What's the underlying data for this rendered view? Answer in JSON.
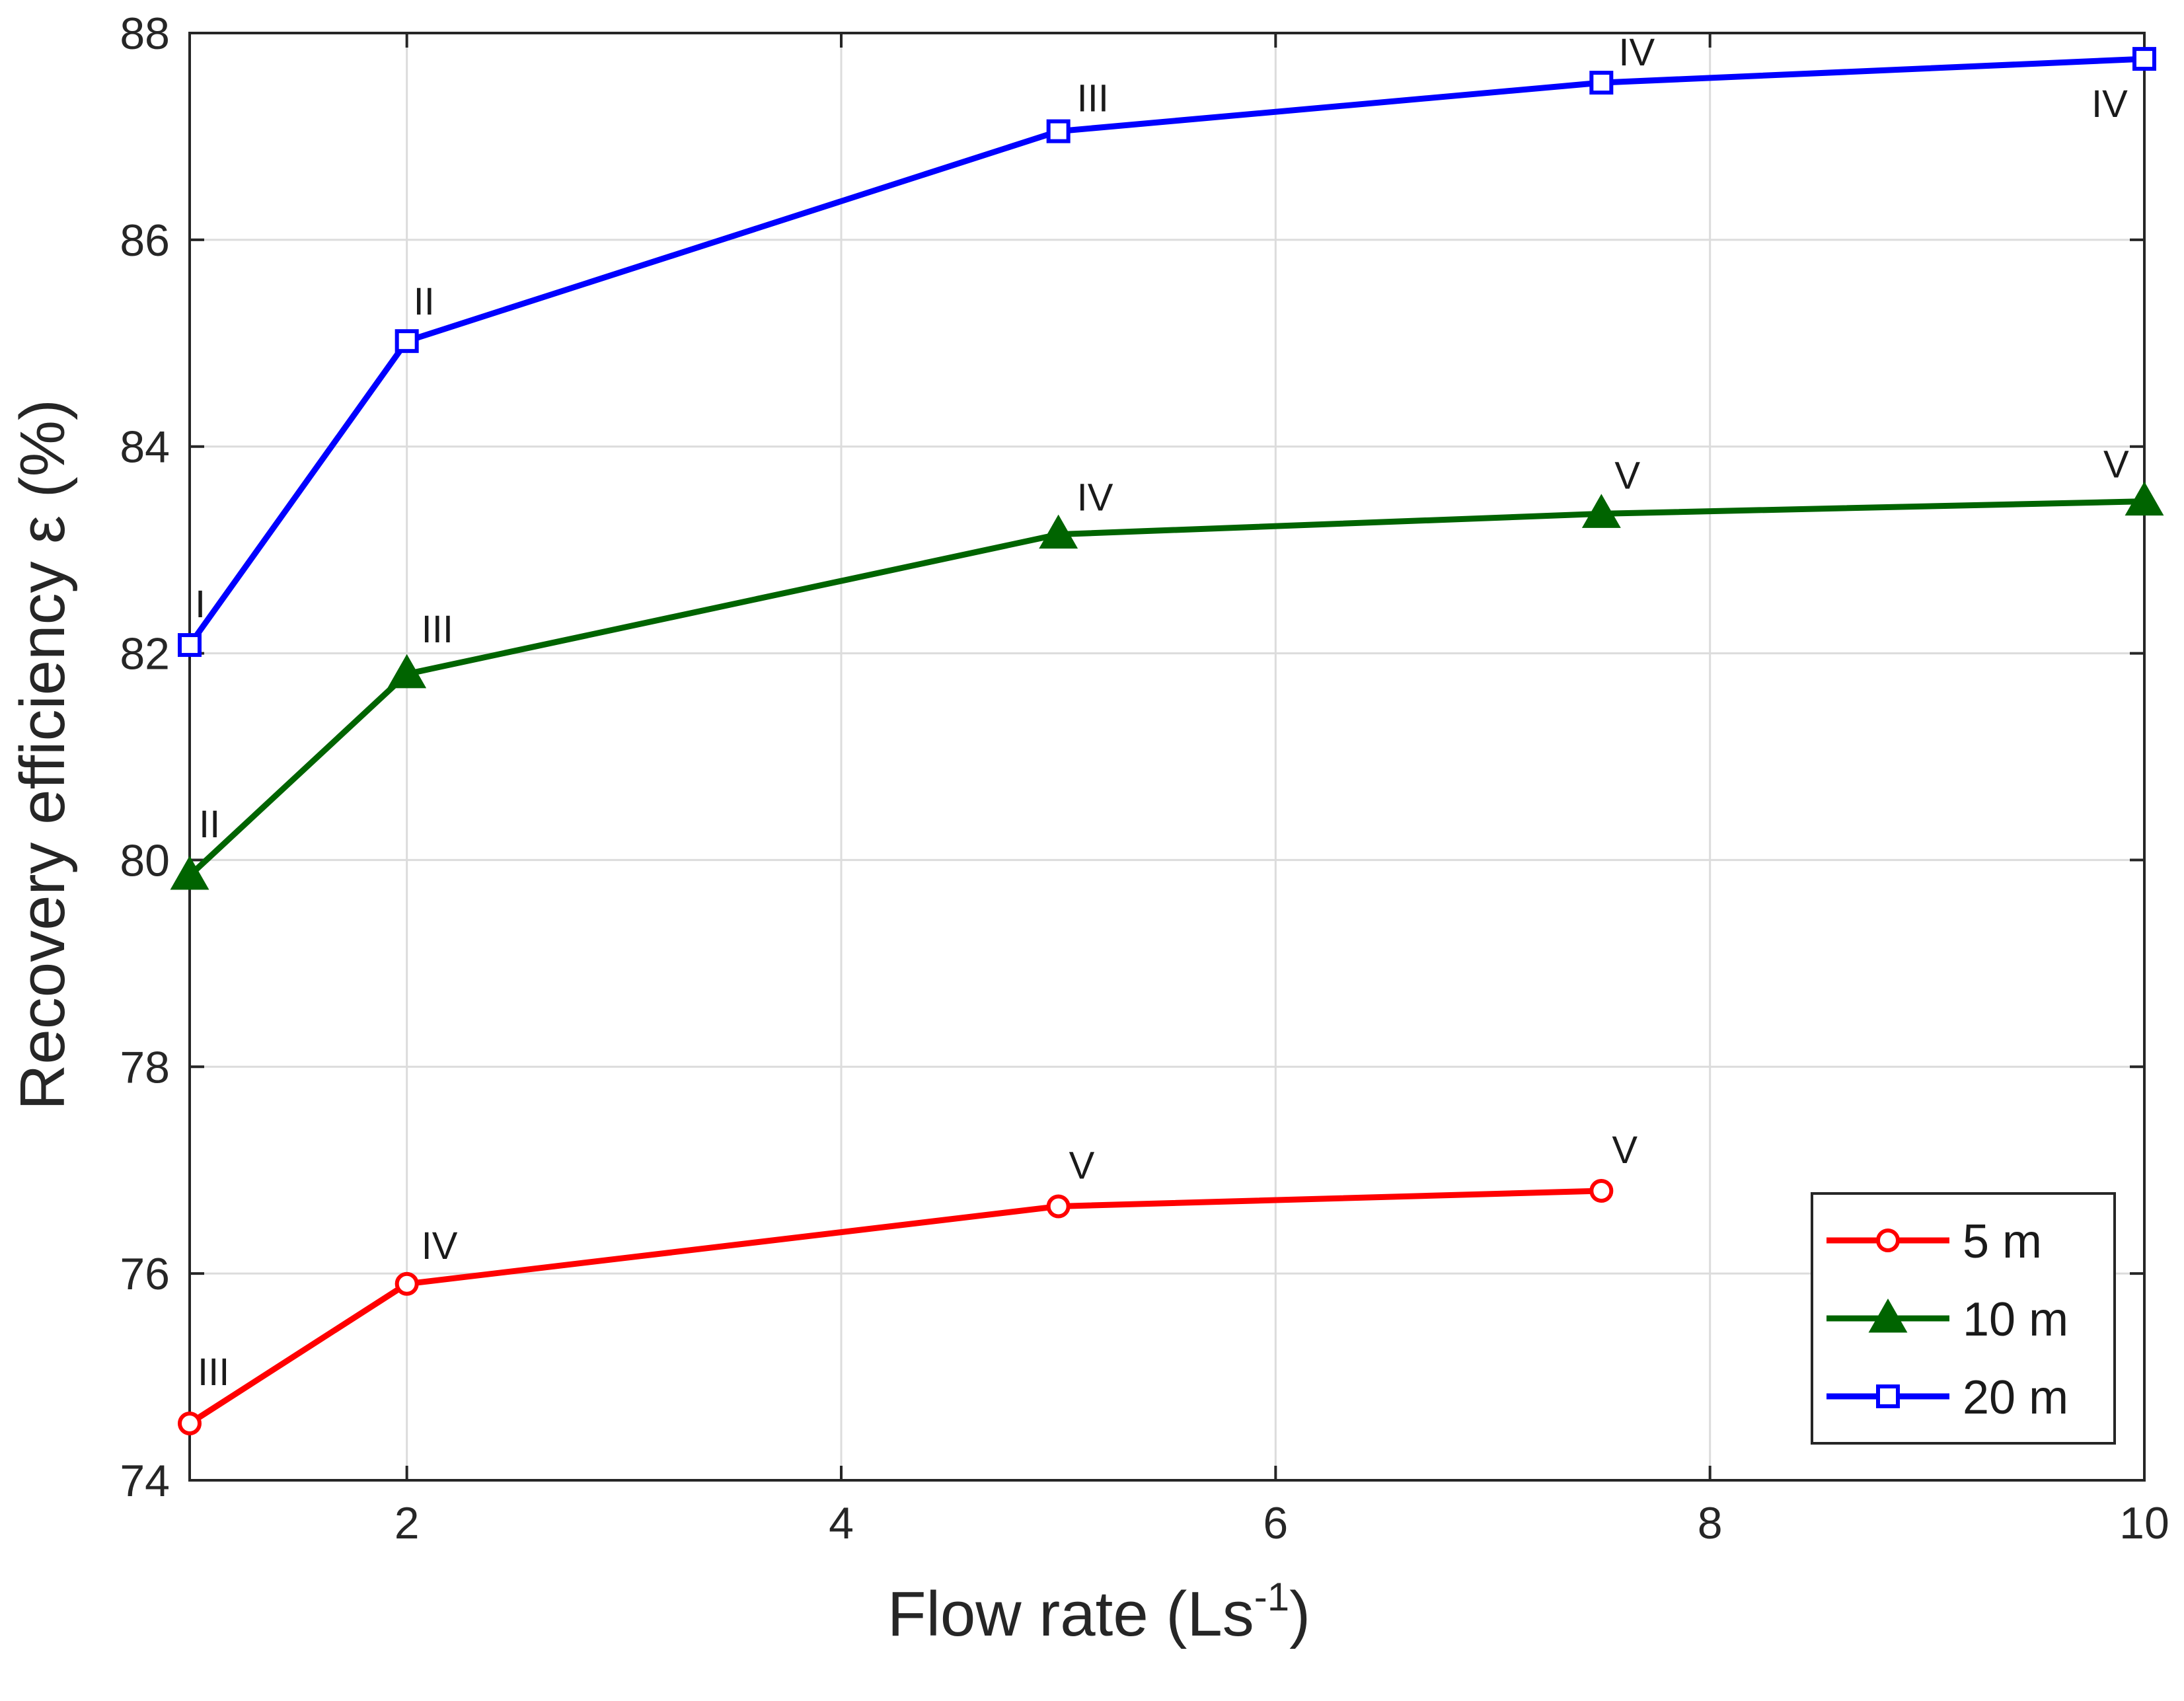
{
  "chart_data": {
    "type": "line",
    "title": "",
    "xlabel": "Flow rate (Ls",
    "xlabel_superscript": "-1",
    "xlabel_close": ")",
    "ylabel": "Recovery efficiency ε (%)",
    "xlim": [
      1,
      10
    ],
    "ylim": [
      74,
      88
    ],
    "xticks": [
      2,
      4,
      6,
      8,
      10
    ],
    "yticks": [
      74,
      76,
      78,
      80,
      82,
      84,
      86,
      88
    ],
    "grid": true,
    "legend_position": "bottom-right",
    "series": [
      {
        "name": "5 m",
        "color": "#ff0000",
        "marker": "circle",
        "x": [
          1,
          2,
          5,
          7.5
        ],
        "y": [
          74.55,
          75.9,
          76.65,
          76.8
        ],
        "annotations": [
          "III",
          "IV",
          "V",
          "V"
        ]
      },
      {
        "name": "10 m",
        "color": "#006400",
        "marker": "triangle",
        "x": [
          1,
          2,
          5,
          7.5,
          10
        ],
        "y": [
          79.85,
          81.8,
          83.15,
          83.35,
          83.47
        ],
        "annotations": [
          "II",
          "III",
          "IV",
          "V",
          "V"
        ]
      },
      {
        "name": "20 m",
        "color": "#0000ff",
        "marker": "square",
        "x": [
          1,
          2,
          5,
          7.5,
          10
        ],
        "y": [
          82.08,
          85.02,
          87.05,
          87.52,
          87.75
        ],
        "annotations": [
          "I",
          "II",
          "III",
          "IV",
          "IV"
        ]
      }
    ]
  }
}
